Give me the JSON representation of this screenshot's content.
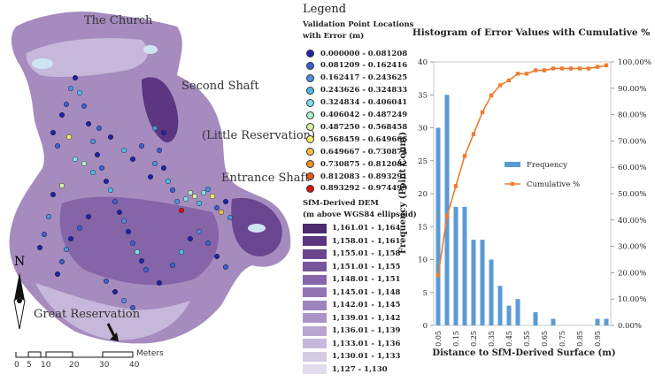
{
  "map": {
    "labels": {
      "church": "The Church",
      "second_shaft": "Second Shaft",
      "little_reservation": "(Little Reservation)",
      "entrance_shaft": "Entrance Shaft",
      "great_reservation": "Great Reservation",
      "north": "N"
    },
    "scale_bar": {
      "ticks": [
        "0",
        "5",
        "10",
        "20",
        "30",
        "40"
      ],
      "unit": "Meters"
    }
  },
  "legend": {
    "title": "Legend",
    "points_title_1": "Validation Point Locations",
    "points_title_2": "with Error (m)",
    "points": [
      {
        "range": "0.000000 - 0.081208",
        "color": "#1f23a8"
      },
      {
        "range": "0.081209 - 0.162416",
        "color": "#3b5fd0"
      },
      {
        "range": "0.162417 - 0.243625",
        "color": "#4f8fe0"
      },
      {
        "range": "0.243626 - 0.324833",
        "color": "#4fb9e8"
      },
      {
        "range": "0.324834 - 0.406041",
        "color": "#7fe0e6"
      },
      {
        "range": "0.406042 - 0.487249",
        "color": "#b0f0d0"
      },
      {
        "range": "0.487250 - 0.568458",
        "color": "#d8f0a0"
      },
      {
        "range": "0.568459 - 0.649666",
        "color": "#f0f060"
      },
      {
        "range": "0.649667 - 0.730874",
        "color": "#f5c040"
      },
      {
        "range": "0.730875 - 0.812082",
        "color": "#f09020"
      },
      {
        "range": "0.812083 - 0.893291",
        "color": "#e85a10"
      },
      {
        "range": "0.893292 - 0.974499",
        "color": "#d81010"
      }
    ],
    "dem_title_1": "SfM-Derived DEM",
    "dem_title_2": "(m above WGS84 ellipsoid)",
    "dem": [
      {
        "range": "1,161.01 - 1,164",
        "color": "#4e2a6e"
      },
      {
        "range": "1,158.01 - 1,161",
        "color": "#5c3680"
      },
      {
        "range": "1,155.01 - 1,158",
        "color": "#6a4690"
      },
      {
        "range": "1,151.01 - 1,155",
        "color": "#78569c"
      },
      {
        "range": "1,148.01 - 1,151",
        "color": "#8564a8"
      },
      {
        "range": "1,145.01 - 1,148",
        "color": "#9274b3"
      },
      {
        "range": "1,142.01 - 1,145",
        "color": "#9e84bd"
      },
      {
        "range": "1,139.01 - 1,142",
        "color": "#ab95c7"
      },
      {
        "range": "1,136.01 - 1,139",
        "color": "#b8a6d0"
      },
      {
        "range": "1,133.01 - 1,136",
        "color": "#c6b8da"
      },
      {
        "range": "1,130.01 - 1,133",
        "color": "#d4cae3"
      },
      {
        "range": "1,127 - 1,130",
        "color": "#e2dcec"
      }
    ]
  },
  "chart_data": {
    "type": "bar",
    "title": "Histogram of Error Values with Cumulative %",
    "xlabel": "Distance to SfM-Derived Surface (m)",
    "ylabel": "Frequency (Point Count)",
    "ylim": [
      0,
      40
    ],
    "y2lim": [
      0,
      100
    ],
    "y_ticks": [
      0,
      5,
      10,
      15,
      20,
      25,
      30,
      35,
      40
    ],
    "y2_ticks": [
      "0.00%",
      "10.00%",
      "20.00%",
      "30.00%",
      "40.00%",
      "50.00%",
      "60.00%",
      "70.00%",
      "80.00%",
      "90.00%",
      "100.00%"
    ],
    "categories": [
      "0.05",
      "0.10",
      "0.15",
      "0.20",
      "0.25",
      "0.30",
      "0.35",
      "0.40",
      "0.45",
      "0.50",
      "0.55",
      "0.60",
      "0.65",
      "0.70",
      "0.75",
      "0.80",
      "0.85",
      "0.90",
      "0.95",
      "1.00"
    ],
    "x_tick_labels": [
      "0.05",
      "0.15",
      "0.25",
      "0.35",
      "0.45",
      "0.55",
      "0.65",
      "0.75",
      "0.85",
      "0.95"
    ],
    "series": [
      {
        "name": "Frequency",
        "type": "bar",
        "color": "#5b9bd5",
        "values": [
          30,
          35,
          18,
          18,
          13,
          13,
          10,
          6,
          3,
          4,
          0,
          2,
          0,
          1,
          0,
          0,
          0,
          0,
          1,
          1
        ]
      },
      {
        "name": "Cumulative %",
        "type": "line",
        "color": "#ed7d31",
        "values": [
          19.1,
          41.4,
          52.9,
          64.3,
          72.6,
          80.9,
          87.3,
          91.1,
          93.0,
          95.5,
          95.5,
          96.8,
          96.8,
          97.5,
          97.5,
          97.5,
          97.5,
          97.5,
          98.1,
          98.7
        ]
      }
    ]
  }
}
